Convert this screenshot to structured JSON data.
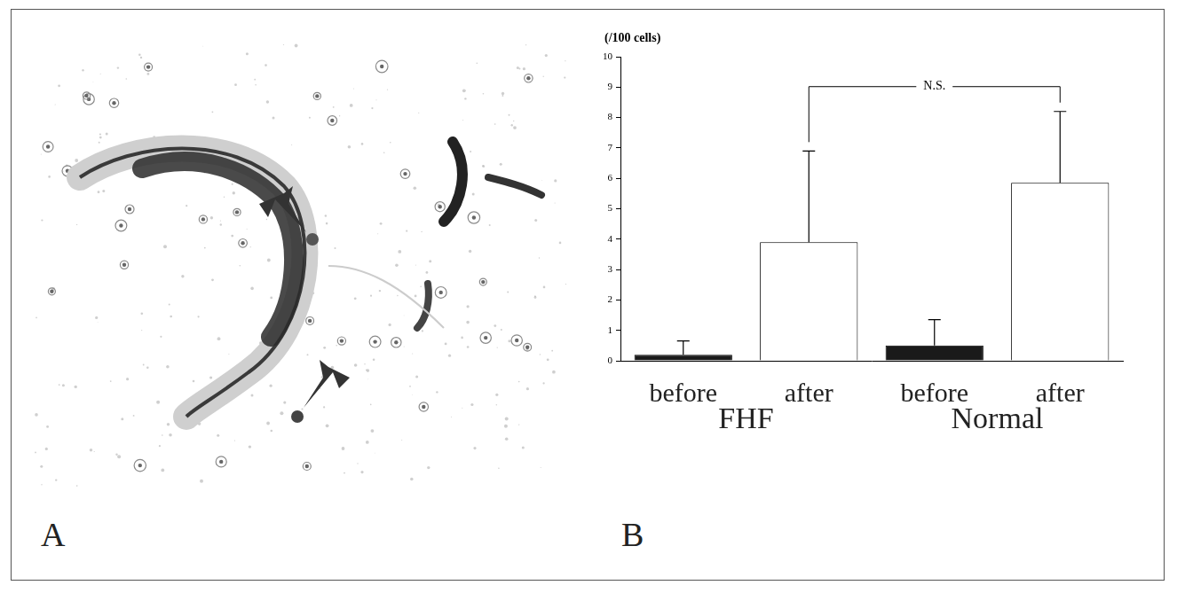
{
  "figure": {
    "panel_labels": [
      "A",
      "B"
    ]
  },
  "chart_data": {
    "type": "bar",
    "y_label": "(/100 cells)",
    "categories": [
      "before",
      "after",
      "before",
      "after"
    ],
    "groups": [
      {
        "name": "FHF",
        "categories": [
          0,
          1
        ]
      },
      {
        "name": "Normal",
        "categories": [
          2,
          3
        ]
      }
    ],
    "values": [
      0.2,
      3.9,
      0.5,
      5.85
    ],
    "errors": [
      0.45,
      3.0,
      0.85,
      2.35
    ],
    "colors": [
      "#1a1a1a",
      "#ffffff",
      "#1a1a1a",
      "#ffffff"
    ],
    "ylim": [
      0,
      10
    ],
    "yticks": [
      0,
      1,
      2,
      3,
      4,
      5,
      6,
      7,
      8,
      9,
      10
    ],
    "grid": false,
    "annotations": [
      {
        "text": "N.S.",
        "between": [
          1,
          3
        ]
      }
    ]
  }
}
